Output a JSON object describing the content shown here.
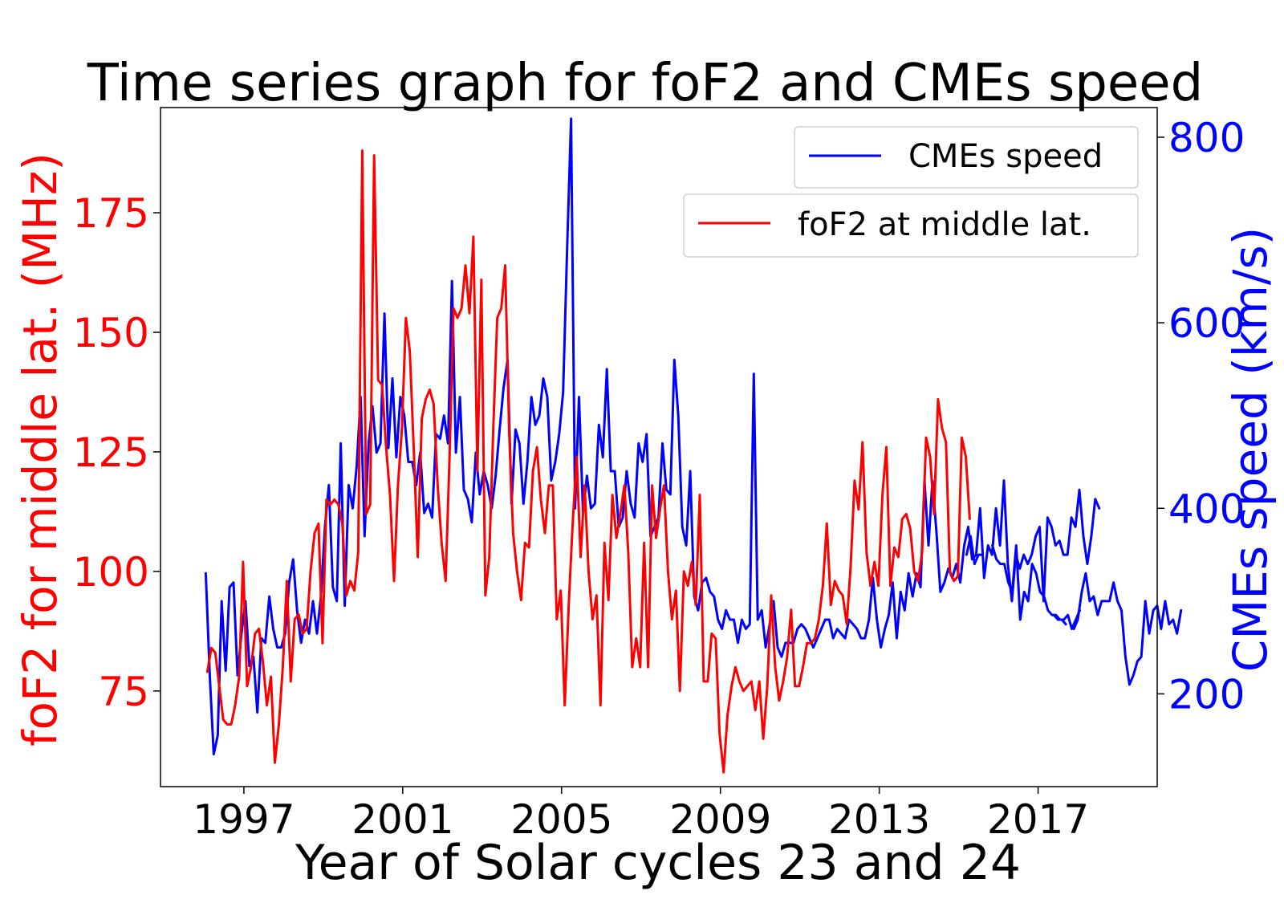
{
  "chart_data": {
    "type": "line",
    "title": "Time series graph for foF2 and CMEs speed",
    "xlabel": "Year of Solar cycles 23 and 24",
    "ylabel_left": "foF2 for middle lat. (MHz)",
    "ylabel_right": "CMEs speed (km/s)",
    "xlim": [
      1994.9,
      2020.0
    ],
    "ylim_left": [
      55,
      197
    ],
    "ylim_right": [
      100,
      832
    ],
    "x_ticks": [
      1997,
      2001,
      2005,
      2009,
      2013,
      2017
    ],
    "x_tick_labels": [
      "1997",
      "2001",
      "2005",
      "2009",
      "2013",
      "2017"
    ],
    "y_left_ticks": [
      75,
      100,
      125,
      150,
      175
    ],
    "y_left_tick_labels": [
      "75",
      "100",
      "125",
      "150",
      "175"
    ],
    "y_right_ticks": [
      200,
      400,
      600,
      800
    ],
    "y_right_tick_labels": [
      "200",
      "400",
      "600",
      "800"
    ],
    "legend": [
      {
        "name": "CMEs speed",
        "color": "#0000ff",
        "placement": "top-right"
      },
      {
        "name": "foF2 at middle lat.",
        "color": "#ff0000",
        "placement": "upper-right"
      }
    ],
    "series": [
      {
        "name": "foF2 at middle lat.",
        "axis": "left",
        "color": "#ff0000",
        "start": 1996.08,
        "step": 0.1,
        "values": [
          79,
          84,
          83,
          76,
          69,
          68,
          68,
          72,
          78,
          102,
          76,
          80,
          87,
          88,
          81,
          72,
          78,
          60,
          68,
          80,
          98,
          77,
          90,
          91,
          87,
          88,
          100,
          108,
          110,
          85,
          115,
          114,
          115,
          114,
          110,
          95,
          98,
          96,
          104,
          188,
          112,
          114,
          187,
          140,
          139,
          126,
          116,
          98,
          118,
          130,
          153,
          146,
          125,
          103,
          132,
          136,
          138,
          135,
          118,
          106,
          98,
          124,
          155,
          153,
          155,
          164,
          154,
          170,
          121,
          161,
          95,
          103,
          130,
          153,
          155,
          164,
          129,
          108,
          100,
          94,
          106,
          105,
          121,
          126,
          115,
          108,
          118,
          118,
          90,
          96,
          72,
          93,
          110,
          124,
          103,
          118,
          100,
          90,
          95,
          72,
          106,
          94,
          116,
          107,
          112,
          118,
          104,
          80,
          86,
          80,
          106,
          80,
          118,
          107,
          113,
          118,
          100,
          90,
          96,
          75,
          100,
          97,
          102,
          93,
          116,
          77,
          77,
          87,
          86,
          66,
          58,
          70,
          76,
          80,
          77,
          75,
          76,
          77,
          71,
          77,
          65,
          76,
          95,
          80,
          73,
          77,
          82,
          92,
          76,
          76,
          80,
          85,
          85,
          86,
          90,
          97,
          110,
          93,
          98,
          96,
          95,
          89,
          101,
          119,
          113,
          127,
          104,
          97,
          102,
          97,
          116,
          126,
          97,
          105,
          103,
          111,
          112,
          109,
          100,
          98,
          104,
          128,
          124,
          112,
          136,
          130,
          127,
          100,
          98,
          99,
          128,
          124,
          111
        ]
      },
      {
        "name": "CMEs speed",
        "axis": "right",
        "color": "#0000ff",
        "segments": [
          {
            "start": 1996.04,
            "step": 0.1,
            "values": [
              330,
              220,
              135,
              155,
              300,
              225,
              315,
              320,
              220,
              265,
              300,
              230,
              240,
              180,
              260,
              255,
              305,
              270,
              250,
              250,
              265,
              320,
              345,
              290,
              255,
              280,
              265,
              300,
              265,
              305,
              380,
              425,
              315,
              300,
              470,
              295,
              425,
              400,
              445,
              520,
              370,
              470,
              510,
              460,
              470,
              610,
              465,
              540,
              455,
              520,
              500,
              450,
              450,
              425,
              460,
              395,
              405,
              390,
              480,
              475,
              500,
              470,
              645,
              460,
              520,
              420,
              410,
              385,
              460,
              415,
              440,
              425,
              400,
              435,
              485,
              530,
              560,
              405,
              485,
              470,
              405,
              450,
              520,
              490,
              500,
              540,
              520,
              430,
              450,
              480,
              525,
              680,
              820,
              400,
              520,
              395,
              435,
              400,
              405,
              490,
              455,
              550,
              440,
              440,
              380,
              390,
              440,
              405,
              390,
              470,
              450,
              480,
              370,
              380,
              390,
              470,
              420,
              415,
              560,
              500,
              380,
              360,
              440,
              305,
              290,
              320,
              325,
              310,
              305,
              280,
              270,
              290,
              280,
              280,
              255,
              280,
              270,
              275,
              545,
              280,
              290,
              250,
              275,
              300,
              250,
              240,
              255,
              255,
              255,
              270,
              275,
              270,
              260,
              250,
              260,
              270,
              280,
              280,
              260,
              270,
              265,
              260,
              280,
              275,
              270,
              260,
              260,
              280,
              325,
              280,
              250,
              270,
              285,
              320,
              260,
              310,
              290,
              330,
              305,
              330,
              315,
              430,
              360,
              430,
              375,
              310,
              320,
              335,
              325,
              340,
              320,
              360,
              380,
              345,
              350,
              400,
              325,
              360,
              350,
              400,
              360,
              430,
              340,
              300,
              350,
              335,
              350,
              340,
              350,
              370,
              380,
              300,
              390,
              380,
              360,
              365,
              350,
              350,
              390,
              380,
              420,
              370,
              340,
              370,
              410,
              400
            ]
          },
          {
            "start": 2015.2,
            "step": 0.1,
            "values": [
              350,
              370,
              340,
              350,
              350
            ]
          },
          {
            "start": 2015.85,
            "step": 0.1,
            "values": [
              360,
              345,
              340,
              340,
              320,
              310,
              360,
              280,
              310,
              300,
              340,
              330,
              310,
              305,
              290,
              285,
              285,
              280,
              280,
              285,
              270,
              280,
              290
            ]
          },
          {
            "start": 2017.4,
            "step": 0.1,
            "values": [
              285,
              280,
              280,
              275
            ]
          },
          {
            "start": 2017.9,
            "step": 0.1,
            "values": [
              270,
              280,
              310,
              330,
              300,
              305,
              285,
              300,
              300,
              300,
              320,
              300,
              290,
              240,
              210,
              220,
              235,
              240,
              300,
              265,
              290,
              295,
              270,
              300,
              275,
              280,
              265,
              290
            ]
          }
        ]
      }
    ]
  }
}
